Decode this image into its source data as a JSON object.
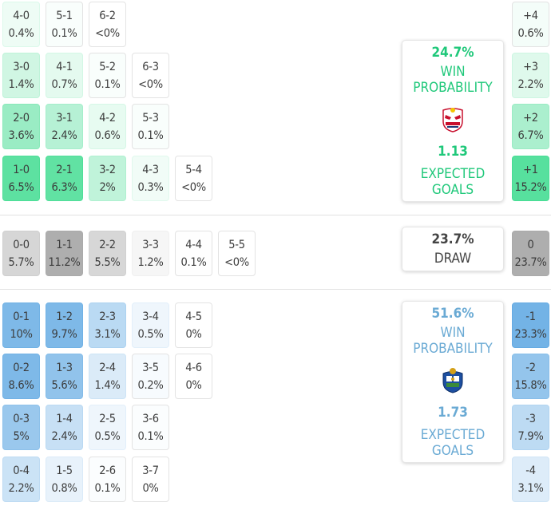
{
  "home": {
    "win_probability": "24.7%",
    "win_label": "WIN PROBABILITY",
    "expected_goals": "1.13",
    "xg_label": "EXPECTED GOALS",
    "accent_color": "#1fc87a",
    "logo_icon": "red-bull-crest-icon"
  },
  "draw": {
    "probability": "23.7%",
    "label": "DRAW"
  },
  "away": {
    "win_probability": "51.6%",
    "win_label": "WIN PROBABILITY",
    "expected_goals": "1.73",
    "xg_label": "EXPECTED GOALS",
    "accent_color": "#6aaad4",
    "logo_icon": "fc-porto-crest-icon"
  },
  "home_scores": [
    [
      {
        "s": "4-0",
        "p": "0.4%"
      },
      {
        "s": "5-1",
        "p": "0.1%"
      },
      {
        "s": "6-2",
        "p": "<0%"
      }
    ],
    [
      {
        "s": "3-0",
        "p": "1.4%"
      },
      {
        "s": "4-1",
        "p": "0.7%"
      },
      {
        "s": "5-2",
        "p": "0.1%"
      },
      {
        "s": "6-3",
        "p": "<0%"
      }
    ],
    [
      {
        "s": "2-0",
        "p": "3.6%"
      },
      {
        "s": "3-1",
        "p": "2.4%"
      },
      {
        "s": "4-2",
        "p": "0.6%"
      },
      {
        "s": "5-3",
        "p": "0.1%"
      }
    ],
    [
      {
        "s": "1-0",
        "p": "6.5%"
      },
      {
        "s": "2-1",
        "p": "6.3%"
      },
      {
        "s": "3-2",
        "p": "2%"
      },
      {
        "s": "4-3",
        "p": "0.3%"
      },
      {
        "s": "5-4",
        "p": "<0%"
      }
    ]
  ],
  "draw_scores": [
    [
      {
        "s": "0-0",
        "p": "5.7%"
      },
      {
        "s": "1-1",
        "p": "11.2%"
      },
      {
        "s": "2-2",
        "p": "5.5%"
      },
      {
        "s": "3-3",
        "p": "1.2%"
      },
      {
        "s": "4-4",
        "p": "0.1%"
      },
      {
        "s": "5-5",
        "p": "<0%"
      }
    ]
  ],
  "away_scores": [
    [
      {
        "s": "0-1",
        "p": "10%"
      },
      {
        "s": "1-2",
        "p": "9.7%"
      },
      {
        "s": "2-3",
        "p": "3.1%"
      },
      {
        "s": "3-4",
        "p": "0.5%"
      },
      {
        "s": "4-5",
        "p": "0%"
      }
    ],
    [
      {
        "s": "0-2",
        "p": "8.6%"
      },
      {
        "s": "1-3",
        "p": "5.6%"
      },
      {
        "s": "2-4",
        "p": "1.4%"
      },
      {
        "s": "3-5",
        "p": "0.2%"
      },
      {
        "s": "4-6",
        "p": "0%"
      }
    ],
    [
      {
        "s": "0-3",
        "p": "5%"
      },
      {
        "s": "1-4",
        "p": "2.4%"
      },
      {
        "s": "2-5",
        "p": "0.5%"
      },
      {
        "s": "3-6",
        "p": "0.1%"
      }
    ],
    [
      {
        "s": "0-4",
        "p": "2.2%"
      },
      {
        "s": "1-5",
        "p": "0.8%"
      },
      {
        "s": "2-6",
        "p": "0.1%"
      },
      {
        "s": "3-7",
        "p": "0%"
      }
    ]
  ],
  "margins_home": [
    {
      "m": "+4",
      "p": "0.6%"
    },
    {
      "m": "+3",
      "p": "2.2%"
    },
    {
      "m": "+2",
      "p": "6.7%"
    },
    {
      "m": "+1",
      "p": "15.2%"
    }
  ],
  "margin_draw": {
    "m": "0",
    "p": "23.7%"
  },
  "margins_away": [
    {
      "m": "-1",
      "p": "23.3%"
    },
    {
      "m": "-2",
      "p": "15.8%"
    },
    {
      "m": "-3",
      "p": "7.9%"
    },
    {
      "m": "-4",
      "p": "3.1%"
    }
  ]
}
